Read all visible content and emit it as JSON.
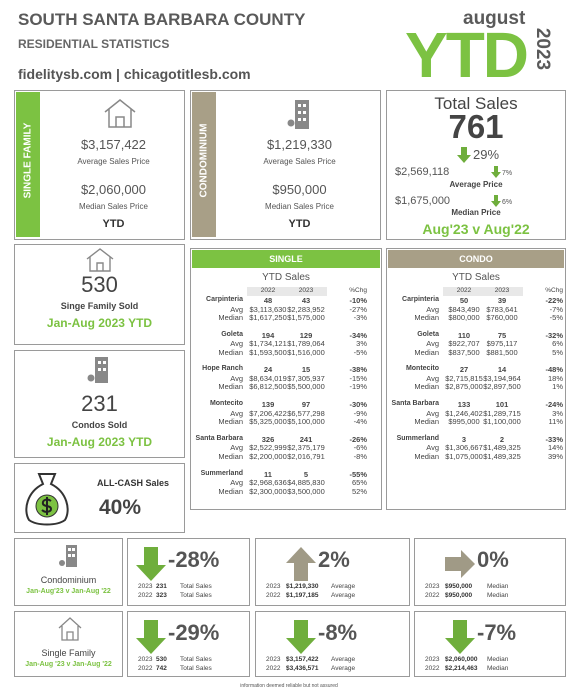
{
  "header": {
    "title": "SOUTH SANTA BARBARA COUNTY",
    "subtitle": "RESIDENTIAL STATISTICS",
    "websites": "fidelitysb.com | chicagotitlesb.com",
    "month": "august",
    "ytd": "YTD",
    "year": "2023"
  },
  "single_family": {
    "label": "SINGLE FAMILY",
    "avg_price": "$3,157,422",
    "avg_label": "Average Sales Price",
    "median_price": "$2,060,000",
    "median_label": "Median Sales Price",
    "period": "YTD"
  },
  "condominium": {
    "label": "CONDOMINIUM",
    "avg_price": "$1,219,330",
    "avg_label": "Average Sales Price",
    "median_price": "$950,000",
    "median_label": "Median Sales Price",
    "period": "YTD"
  },
  "total_sales": {
    "title": "Total Sales",
    "value": "761",
    "change": "29%",
    "avg": "$2,569,118",
    "avg_change": "7%",
    "avg_label": "Average Price",
    "median": "$1,675,000",
    "median_change": "6%",
    "median_label": "Median Price",
    "comparison": "Aug'23 v Aug'22"
  },
  "sf_sold": {
    "value": "530",
    "label": "Singe Family Sold",
    "period": "Jan-Aug 2023 YTD"
  },
  "condo_sold": {
    "value": "231",
    "label": "Condos Sold",
    "period": "Jan-Aug 2023 YTD"
  },
  "all_cash": {
    "label": "ALL-CASH Sales",
    "value": "40%"
  },
  "tables": [
    {
      "header": "SINGLE",
      "subtitle": "YTD Sales",
      "columns": [
        "2022",
        "2023",
        "%Chg"
      ],
      "row_labels": [
        "Avg",
        "Median"
      ],
      "areas": [
        {
          "name": "Carpinteria",
          "sales": [
            "48",
            "43",
            "-10%"
          ],
          "avg": [
            "$3,113,630",
            "$2,283,952",
            "-27%"
          ],
          "median": [
            "$1,617,250",
            "$1,575,000",
            "-3%"
          ]
        },
        {
          "name": "Goleta",
          "sales": [
            "194",
            "129",
            "-34%"
          ],
          "avg": [
            "$1,734,121",
            "$1,789,064",
            "3%"
          ],
          "median": [
            "$1,593,500",
            "$1,516,000",
            "-5%"
          ]
        },
        {
          "name": "Hope Ranch",
          "sales": [
            "24",
            "15",
            "-38%"
          ],
          "avg": [
            "$8,634,019",
            "$7,305,937",
            "-15%"
          ],
          "median": [
            "$6,812,500",
            "$5,500,000",
            "-19%"
          ]
        },
        {
          "name": "Montecito",
          "sales": [
            "139",
            "97",
            "-30%"
          ],
          "avg": [
            "$7,206,422",
            "$6,577,298",
            "-9%"
          ],
          "median": [
            "$5,325,000",
            "$5,100,000",
            "-4%"
          ]
        },
        {
          "name": "Santa Barbara",
          "sales": [
            "326",
            "241",
            "-26%"
          ],
          "avg": [
            "$2,522,999",
            "$2,375,179",
            "-6%"
          ],
          "median": [
            "$2,200,000",
            "$2,016,791",
            "-8%"
          ]
        },
        {
          "name": "Summerland",
          "sales": [
            "11",
            "5",
            "-55%"
          ],
          "avg": [
            "$2,968,636",
            "$4,885,830",
            "65%"
          ],
          "median": [
            "$2,300,000",
            "$3,500,000",
            "52%"
          ]
        }
      ]
    },
    {
      "header": "CONDO",
      "subtitle": "YTD Sales",
      "columns": [
        "2022",
        "2023",
        "%Chg"
      ],
      "row_labels": [
        "Avg",
        "Median"
      ],
      "areas": [
        {
          "name": "Carpinteria",
          "sales": [
            "50",
            "39",
            "-22%"
          ],
          "avg": [
            "$843,490",
            "$783,641",
            "-7%"
          ],
          "median": [
            "$800,000",
            "$760,000",
            "-5%"
          ]
        },
        {
          "name": "Goleta",
          "sales": [
            "110",
            "75",
            "-32%"
          ],
          "avg": [
            "$922,707",
            "$975,117",
            "6%"
          ],
          "median": [
            "$837,500",
            "$881,500",
            "5%"
          ]
        },
        {
          "name": "Montecito",
          "sales": [
            "27",
            "14",
            "-48%"
          ],
          "avg": [
            "$2,715,815",
            "$3,194,964",
            "18%"
          ],
          "median": [
            "$2,875,000",
            "$2,897,500",
            "1%"
          ]
        },
        {
          "name": "Santa Barbara",
          "sales": [
            "133",
            "101",
            "-24%"
          ],
          "avg": [
            "$1,246,402",
            "$1,289,715",
            "3%"
          ],
          "median": [
            "$995,000",
            "$1,100,000",
            "11%"
          ]
        },
        {
          "name": "Summerland",
          "sales": [
            "3",
            "2",
            "-33%"
          ],
          "avg": [
            "$1,306,667",
            "$1,489,325",
            "14%"
          ],
          "median": [
            "$1,075,000",
            "$1,489,325",
            "39%"
          ]
        }
      ]
    }
  ],
  "comparison": {
    "years": [
      "2023",
      "2022"
    ],
    "rows": [
      {
        "label": "Condominium",
        "period": "Jan-Aug'23 v Jan-Aug '22",
        "cells": [
          {
            "change": "-28%",
            "values": [
              "231",
              "323"
            ],
            "label": "Total Sales"
          },
          {
            "change": "2%",
            "values": [
              "$1,219,330",
              "$1,197,185"
            ],
            "label": "Average"
          },
          {
            "change": "0%",
            "values": [
              "$950,000",
              "$950,000"
            ],
            "label": "Median"
          }
        ]
      },
      {
        "label": "Single Family",
        "period": "Jan-Aug '23 v Jan-Aug '22",
        "cells": [
          {
            "change": "-29%",
            "values": [
              "530",
              "742"
            ],
            "label": "Total Sales"
          },
          {
            "change": "-8%",
            "values": [
              "$3,157,422",
              "$3,436,571"
            ],
            "label": "Average"
          },
          {
            "change": "-7%",
            "values": [
              "$2,060,000",
              "$2,214,463"
            ],
            "label": "Median"
          }
        ]
      }
    ]
  },
  "footer": "information deemed reliable but not assured"
}
